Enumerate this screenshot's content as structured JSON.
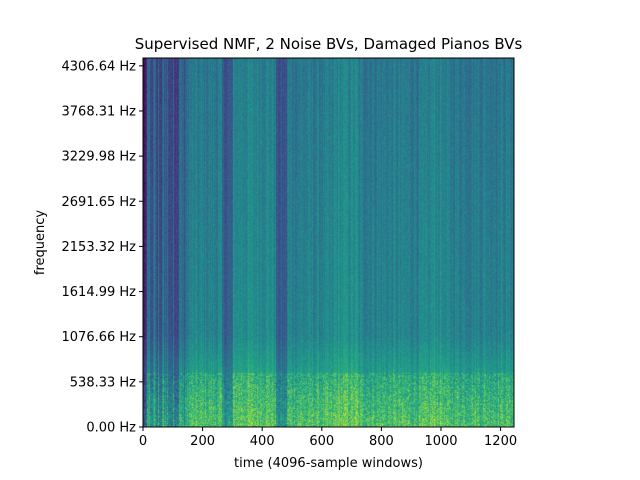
{
  "chart_data": {
    "type": "heatmap",
    "title": "Supervised NMF, 2 Noise BVs, Damaged Pianos BVs",
    "xlabel": "time (4096-sample windows)",
    "ylabel": "frequency",
    "xlim": [
      0,
      1245
    ],
    "ylim": [
      0,
      4400
    ],
    "xticks": [
      0,
      200,
      400,
      600,
      800,
      1000,
      1200
    ],
    "xtick_labels": [
      "0",
      "200",
      "400",
      "600",
      "800",
      "1000",
      "1200"
    ],
    "yticks": [
      0.0,
      538.33,
      1076.66,
      1614.99,
      2153.32,
      2691.65,
      3229.98,
      3768.31,
      4306.64
    ],
    "ytick_labels": [
      "0.00 Hz",
      "538.33 Hz",
      "1076.66 Hz",
      "1614.99 Hz",
      "2153.32 Hz",
      "2691.65 Hz",
      "3229.98 Hz",
      "3768.31 Hz",
      "4306.64 Hz"
    ],
    "colormap": "viridis",
    "colors": {
      "low": "#440154",
      "mid_low": "#3b528b",
      "mid": "#21918c",
      "mid_high": "#5ec962",
      "high": "#fde725"
    },
    "pattern": "spectrogram: energy concentrated below ~650 Hz (yellow-green), mid-range teal/blue above; dark vertical stripes for t < 150 and around t = 270-300, 450-480"
  }
}
